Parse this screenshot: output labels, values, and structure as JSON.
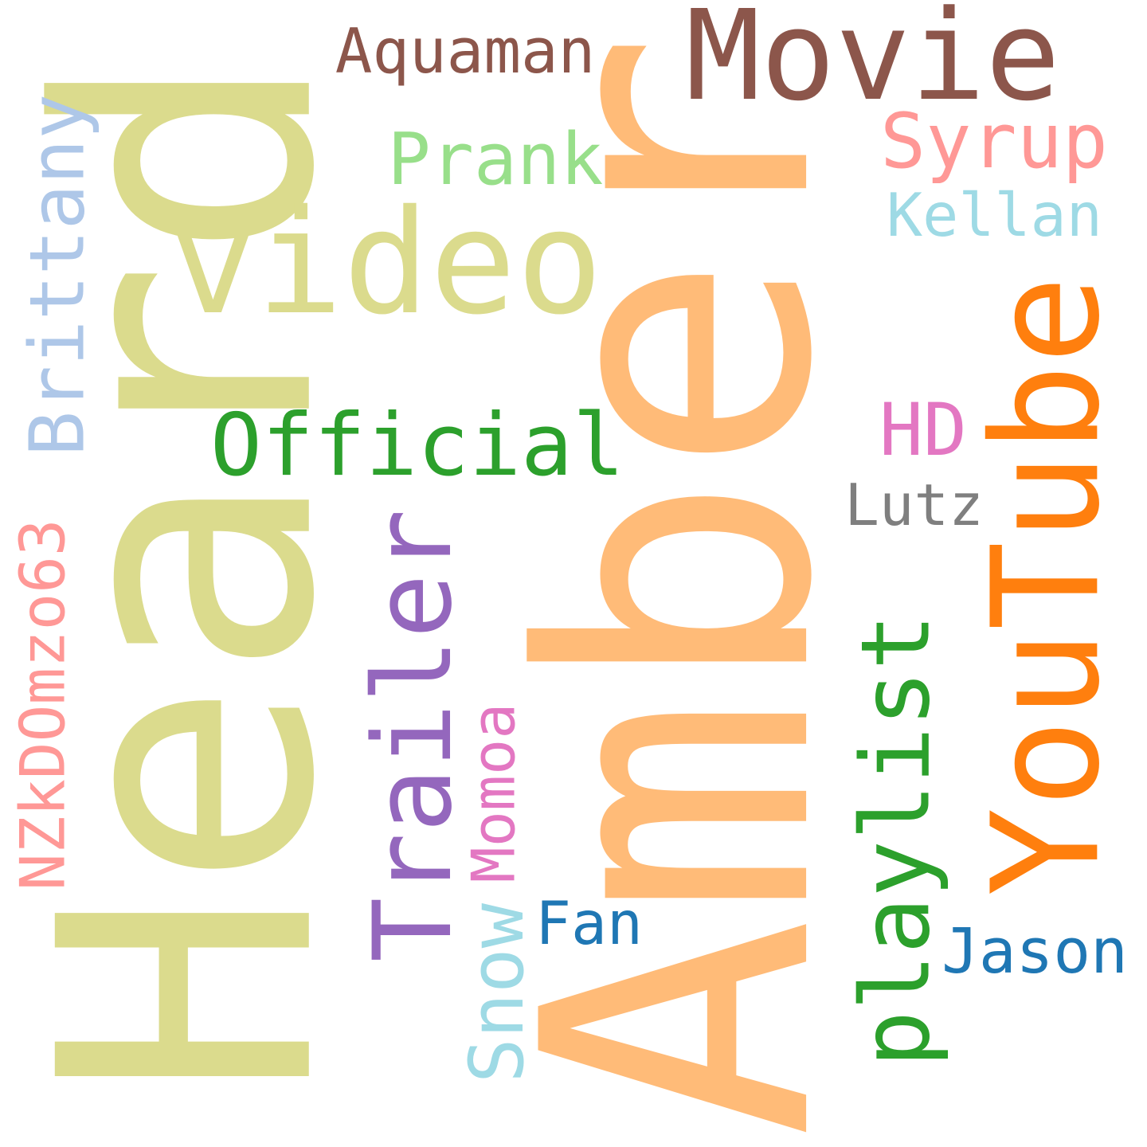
{
  "words": {
    "heard": {
      "text": "Heard",
      "color": "#dbdb8d"
    },
    "amber": {
      "text": "Amber",
      "color": "#ffbb78"
    },
    "movie": {
      "text": "Movie",
      "color": "#8c564b"
    },
    "aquaman": {
      "text": "Aquaman",
      "color": "#8c564b"
    },
    "syrup": {
      "text": "Syrup",
      "color": "#ff9896"
    },
    "prank": {
      "text": "Prank",
      "color": "#98df8a"
    },
    "kellan": {
      "text": "Kellan",
      "color": "#9edae5"
    },
    "video": {
      "text": "video",
      "color": "#dbdb8d"
    },
    "brittany": {
      "text": "Brittany",
      "color": "#aec7e8"
    },
    "youtube": {
      "text": "YouTube",
      "color": "#ff7f0e"
    },
    "official": {
      "text": "Official",
      "color": "#2ca02c"
    },
    "hd": {
      "text": "HD",
      "color": "#e377c2"
    },
    "lutz": {
      "text": "Lutz",
      "color": "#7f7f7f"
    },
    "trailer": {
      "text": "Trailer",
      "color": "#9467bd"
    },
    "nzkdomzo63": {
      "text": "NZkDOmzo63",
      "color": "#ff9896"
    },
    "playlist": {
      "text": "playlist",
      "color": "#2ca02c"
    },
    "momoa": {
      "text": "Momoa",
      "color": "#e377c2"
    },
    "fan": {
      "text": "Fan",
      "color": "#1f77b4"
    },
    "snow": {
      "text": "Snow",
      "color": "#9edae5"
    },
    "jason": {
      "text": "Jason",
      "color": "#1f77b4"
    }
  }
}
